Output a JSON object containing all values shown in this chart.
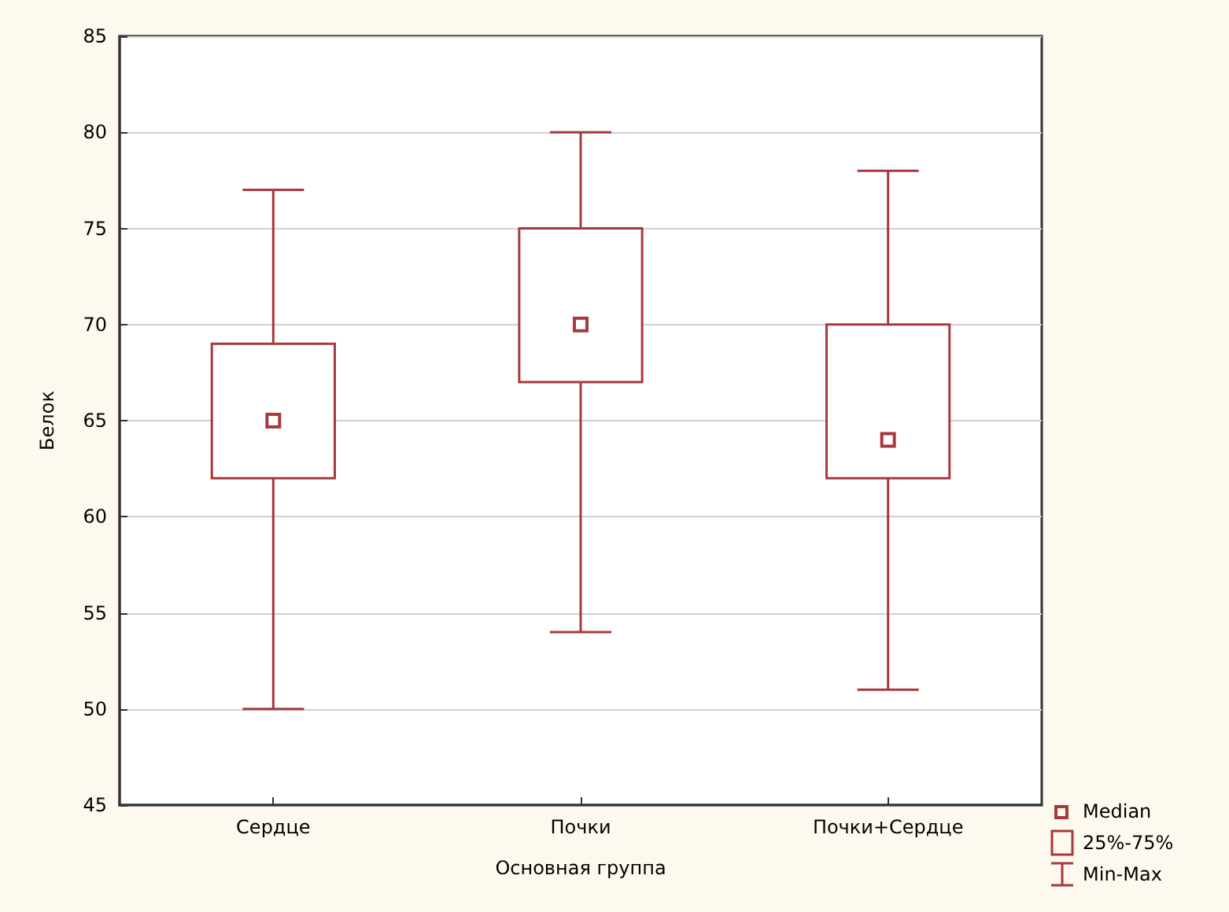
{
  "chart_data": {
    "type": "box",
    "xlabel": "Основная группа",
    "ylabel": "Белок",
    "categories": [
      "Сердце",
      "Почки",
      "Почки+Сердце"
    ],
    "boxes": [
      {
        "low": 50,
        "q1": 62,
        "median": 65,
        "q3": 69,
        "high": 77
      },
      {
        "low": 54,
        "q1": 67,
        "median": 70,
        "q3": 75,
        "high": 80
      },
      {
        "low": 51,
        "q1": 62,
        "median": 64,
        "q3": 70,
        "high": 78
      }
    ],
    "color": "#a8393c",
    "marker": "square",
    "ylim": [
      45,
      85
    ],
    "yticks": [
      45,
      50,
      55,
      60,
      65,
      70,
      75,
      80,
      85
    ],
    "grid": "y",
    "annotations": [
      "Median",
      "25%-75%",
      "Min-Max"
    ]
  }
}
